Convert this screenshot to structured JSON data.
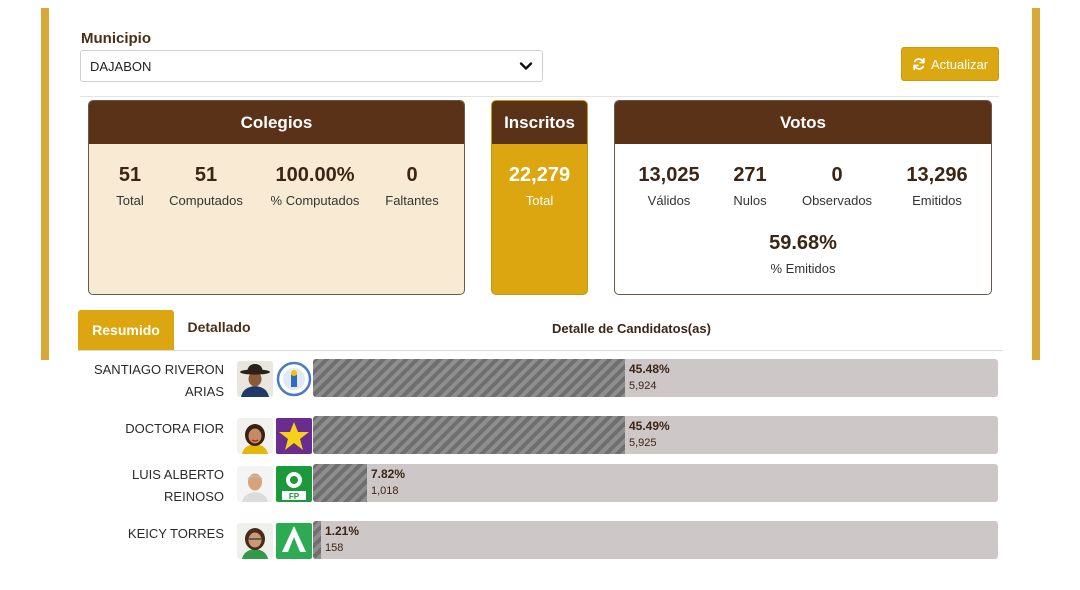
{
  "filter": {
    "label": "Municipio",
    "selected": "DAJABON"
  },
  "update_button": {
    "label": "Actualizar",
    "icon": "refresh-icon"
  },
  "colegios": {
    "title": "Colegios",
    "stats": [
      {
        "value": "51",
        "label": "Total"
      },
      {
        "value": "51",
        "label": "Computados"
      },
      {
        "value": "100.00%",
        "label": "% Computados"
      },
      {
        "value": "0",
        "label": "Faltantes"
      }
    ]
  },
  "inscritos": {
    "title": "Inscritos",
    "value": "22,279",
    "label": "Total"
  },
  "votos": {
    "title": "Votos",
    "stats": [
      {
        "value": "13,025",
        "label": "Válidos"
      },
      {
        "value": "271",
        "label": "Nulos"
      },
      {
        "value": "0",
        "label": "Observados"
      },
      {
        "value": "13,296",
        "label": "Emitidos"
      }
    ],
    "emitidos_pct": {
      "value": "59.68%",
      "label": "% Emitidos"
    }
  },
  "tabs": [
    {
      "label": "Resumido",
      "active": true
    },
    {
      "label": "Detallado",
      "active": false
    }
  ],
  "detail_title": "Detalle de Candidatos(as)",
  "candidates": [
    {
      "name_line1": "SANTIAGO RIVERON",
      "name_line2": "ARIAS",
      "percent": 45.48,
      "percent_label": "45.48%",
      "votes": "5,924",
      "photo": "candidate-photo-man-hat-icon",
      "logo": "pld-party-logo-icon"
    },
    {
      "name_line1": "DOCTORA FIOR",
      "name_line2": "",
      "percent": 45.49,
      "percent_label": "45.49%",
      "votes": "5,925",
      "photo": "candidate-photo-woman-icon",
      "logo": "prd-star-party-logo-icon"
    },
    {
      "name_line1": "LUIS ALBERTO",
      "name_line2": "REINOSO",
      "percent": 7.82,
      "percent_label": "7.82%",
      "votes": "1,018",
      "photo": "candidate-photo-man-icon",
      "logo": "fp-party-logo-icon"
    },
    {
      "name_line1": "KEICY TORRES",
      "name_line2": "",
      "percent": 1.21,
      "percent_label": "1.21%",
      "votes": "158",
      "photo": "candidate-photo-woman-glasses-icon",
      "logo": "alianza-pais-logo-icon"
    }
  ],
  "colors": {
    "brown": "#5a3218",
    "gold": "#dba60f",
    "cream": "#f9ebd3",
    "bar_track": "#cdc7c7"
  }
}
